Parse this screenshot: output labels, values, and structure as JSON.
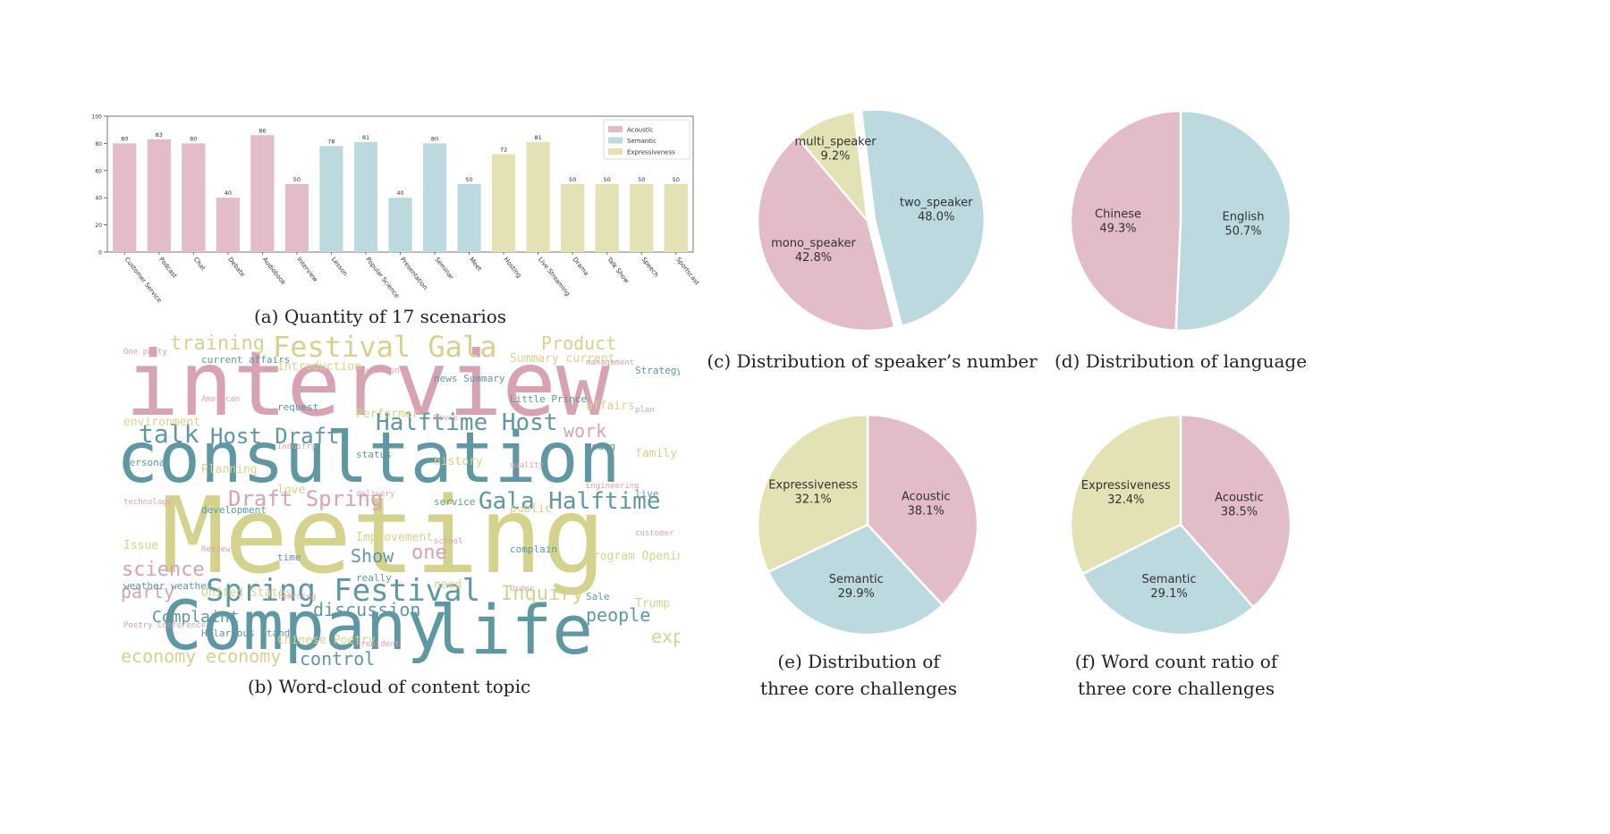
{
  "colors": {
    "acoustic": "#e2bcc7",
    "semantic": "#bcd9df",
    "expressiveness": "#e2e2b4",
    "wc_pink": "#d7a2b1",
    "wc_teal": "#5f97a2",
    "wc_yellow": "#d4d38e"
  },
  "captions": {
    "a": "(a) Quantity of 17 scenarios",
    "b": "(b) Word-cloud of content topic",
    "c": "(c) Distribution of speaker’s number",
    "d": "(d) Distribution of language",
    "e_line1": "(e) Distribution of",
    "e_line2": "three core challenges",
    "f_line1": "(f) Word count ratio of",
    "f_line2": "three core challenges"
  },
  "chart_data": [
    {
      "type": "bar",
      "categories": [
        "Customer Service",
        "Podcast",
        "Chat",
        "Debate",
        "Audiobook",
        "Interview",
        "Lesson",
        "Popular Science",
        "Presentation",
        "Seminar",
        "Meet",
        "Hosting",
        "Live Streaming",
        "Drama",
        "Talk Show",
        "Speech",
        "Sportscast"
      ],
      "values": [
        80,
        83,
        80,
        40,
        86,
        50,
        78,
        81,
        40,
        80,
        50,
        72,
        81,
        50,
        50,
        50,
        50
      ],
      "groups": [
        "Acoustic",
        "Acoustic",
        "Acoustic",
        "Acoustic",
        "Acoustic",
        "Acoustic",
        "Semantic",
        "Semantic",
        "Semantic",
        "Semantic",
        "Semantic",
        "Expressiveness",
        "Expressiveness",
        "Expressiveness",
        "Expressiveness",
        "Expressiveness",
        "Expressiveness"
      ],
      "legend": [
        "Acoustic",
        "Semantic",
        "Expressiveness"
      ],
      "legend_position": "top-right",
      "ylim": [
        0,
        100
      ],
      "yticks": [
        0,
        20,
        40,
        60,
        80,
        100
      ],
      "grid": false
    },
    {
      "type": "pie",
      "labels": [
        "two_speaker",
        "mono_speaker",
        "multi_speaker"
      ],
      "values": [
        48.0,
        42.8,
        9.2
      ],
      "value_labels": [
        "48.0%",
        "42.8%",
        "9.2%"
      ],
      "exploded": "two_speaker"
    },
    {
      "type": "pie",
      "labels": [
        "English",
        "Chinese"
      ],
      "values": [
        50.7,
        49.3
      ],
      "value_labels": [
        "50.7%",
        "49.3%"
      ]
    },
    {
      "type": "pie",
      "labels": [
        "Acoustic",
        "Semantic",
        "Expressiveness"
      ],
      "values": [
        38.1,
        29.9,
        32.1
      ],
      "value_labels": [
        "38.1%",
        "29.9%",
        "32.1%"
      ]
    },
    {
      "type": "pie",
      "labels": [
        "Acoustic",
        "Semantic",
        "Expressiveness"
      ],
      "values": [
        38.5,
        29.1,
        32.4
      ],
      "value_labels": [
        "38.5%",
        "29.1%",
        "32.4%"
      ]
    }
  ],
  "wordcloud": {
    "big": [
      "interview",
      "consultation",
      "Meeting",
      "Company",
      "life"
    ],
    "medium": [
      "Festival Gala",
      "training",
      "Product",
      "Halftime Host",
      "talk",
      "Host Draft",
      "work",
      "Gala Halftime",
      "Draft Spring",
      "Spring Festival",
      "Inquiry",
      "people",
      "economy",
      "economy",
      "control",
      "Show",
      "one",
      "science",
      "party",
      "experience",
      "Complaint",
      "discussion"
    ],
    "small": [
      "One party",
      "current affairs",
      "Introduction",
      "education",
      "news Summary",
      "Summary current",
      "management",
      "Strategy",
      "environment",
      "American",
      "request",
      "Performer",
      "Movie",
      "Little Prince",
      "affairs",
      "plan",
      "personal",
      "Planning",
      "Industry",
      "status",
      "history",
      "quality",
      "young",
      "family",
      "technology",
      "development",
      "love",
      "delivery",
      "service",
      "public",
      "Engineering",
      "live",
      "Issue",
      "Review",
      "time",
      "Improvement",
      "school",
      "complain",
      "Program Opening",
      "customer service",
      "weather weather",
      "United States",
      "learning",
      "really",
      "need",
      "Order",
      "Sale",
      "Trump",
      "Poetry Conference",
      "Hilarious stand",
      "Chinese Poetry",
      "President"
    ]
  }
}
